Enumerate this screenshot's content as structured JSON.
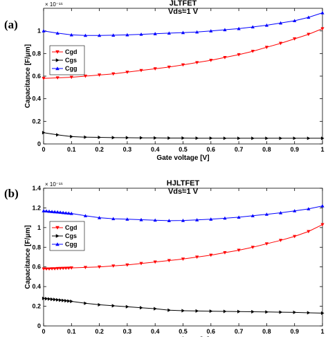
{
  "figure": {
    "panel_labels": [
      "(a)",
      "(b)"
    ]
  },
  "chart_data": [
    {
      "type": "line",
      "title": "JLTFET",
      "subtitle": "Vds=1 V",
      "xlabel": "Gate voltage [V]",
      "ylabel": "Capacitance [F/μm]",
      "y_multiplier": "× 10⁻¹⁶",
      "xlim": [
        0,
        1
      ],
      "ylim": [
        0,
        1.2
      ],
      "xticks": [
        "0",
        "0.1",
        "0.2",
        "0.3",
        "0.4",
        "0.5",
        "0.6",
        "0.7",
        "0.8",
        "0.9",
        "1"
      ],
      "yticks": [
        "0",
        "0.2",
        "0.4",
        "0.6",
        "0.8",
        "1"
      ],
      "ytick_values": [
        0,
        0.2,
        0.4,
        0.6,
        0.8,
        1.0
      ],
      "grid": false,
      "legend": "upper-left",
      "series": [
        {
          "name": "Cgd",
          "color": "#ff0000",
          "marker": "triangle-down",
          "x": [
            0,
            0.05,
            0.1,
            0.15,
            0.2,
            0.25,
            0.3,
            0.35,
            0.4,
            0.45,
            0.5,
            0.55,
            0.6,
            0.65,
            0.7,
            0.75,
            0.8,
            0.85,
            0.9,
            0.95,
            1.0
          ],
          "y": [
            0.58,
            0.585,
            0.59,
            0.6,
            0.61,
            0.62,
            0.635,
            0.65,
            0.665,
            0.68,
            0.7,
            0.72,
            0.74,
            0.765,
            0.79,
            0.82,
            0.855,
            0.89,
            0.93,
            0.97,
            1.02
          ]
        },
        {
          "name": "Cgs",
          "color": "#000000",
          "marker": "triangle-right",
          "x": [
            0,
            0.05,
            0.1,
            0.15,
            0.2,
            0.25,
            0.3,
            0.35,
            0.4,
            0.45,
            0.5,
            0.55,
            0.6,
            0.65,
            0.7,
            0.75,
            0.8,
            0.85,
            0.9,
            0.95,
            1.0
          ],
          "y": [
            0.1,
            0.08,
            0.065,
            0.06,
            0.058,
            0.056,
            0.055,
            0.054,
            0.053,
            0.052,
            0.052,
            0.051,
            0.051,
            0.05,
            0.05,
            0.05,
            0.05,
            0.05,
            0.05,
            0.05,
            0.05
          ]
        },
        {
          "name": "Cgg",
          "color": "#0000ff",
          "marker": "triangle-up",
          "x": [
            0,
            0.05,
            0.1,
            0.15,
            0.2,
            0.25,
            0.3,
            0.35,
            0.4,
            0.45,
            0.5,
            0.55,
            0.6,
            0.65,
            0.7,
            0.75,
            0.8,
            0.85,
            0.9,
            0.95,
            1.0
          ],
          "y": [
            1.0,
            0.98,
            0.965,
            0.96,
            0.96,
            0.962,
            0.965,
            0.97,
            0.975,
            0.98,
            0.985,
            0.99,
            1.0,
            1.01,
            1.02,
            1.035,
            1.05,
            1.07,
            1.09,
            1.12,
            1.16
          ]
        }
      ]
    },
    {
      "type": "line",
      "title": "HJLTFET",
      "subtitle": "Vds=1 V",
      "xlabel": "Gate voltage [V]",
      "ylabel": "Capacitance [F/μm]",
      "y_multiplier": "× 10⁻¹⁶",
      "xlim": [
        0,
        1
      ],
      "ylim": [
        0,
        1.4
      ],
      "xticks": [
        "0",
        "0.1",
        "0.2",
        "0.3",
        "0.4",
        "0.5",
        "0.6",
        "0.7",
        "0.8",
        "0.9",
        "1"
      ],
      "yticks": [
        "0",
        "0.2",
        "0.4",
        "0.6",
        "0.8",
        "1",
        "1.2",
        "1.4"
      ],
      "ytick_values": [
        0,
        0.2,
        0.4,
        0.6,
        0.8,
        1.0,
        1.2,
        1.4
      ],
      "grid": false,
      "legend": "upper-left",
      "series": [
        {
          "name": "Cgd",
          "color": "#ff0000",
          "marker": "triangle-down",
          "x": [
            0,
            0.01,
            0.02,
            0.03,
            0.04,
            0.05,
            0.06,
            0.07,
            0.08,
            0.09,
            0.1,
            0.15,
            0.2,
            0.25,
            0.3,
            0.35,
            0.4,
            0.45,
            0.5,
            0.55,
            0.6,
            0.65,
            0.7,
            0.75,
            0.8,
            0.85,
            0.9,
            0.95,
            1.0
          ],
          "y": [
            0.58,
            0.58,
            0.58,
            0.582,
            0.582,
            0.584,
            0.585,
            0.586,
            0.587,
            0.588,
            0.59,
            0.595,
            0.6,
            0.61,
            0.62,
            0.635,
            0.65,
            0.665,
            0.68,
            0.7,
            0.72,
            0.745,
            0.77,
            0.8,
            0.835,
            0.87,
            0.91,
            0.96,
            1.03
          ]
        },
        {
          "name": "Cgs",
          "color": "#000000",
          "marker": "triangle-right",
          "x": [
            0,
            0.01,
            0.02,
            0.03,
            0.04,
            0.05,
            0.06,
            0.07,
            0.08,
            0.09,
            0.1,
            0.15,
            0.2,
            0.25,
            0.3,
            0.35,
            0.4,
            0.45,
            0.5,
            0.55,
            0.6,
            0.65,
            0.7,
            0.75,
            0.8,
            0.85,
            0.9,
            0.95,
            1.0
          ],
          "y": [
            0.28,
            0.277,
            0.274,
            0.271,
            0.268,
            0.265,
            0.262,
            0.259,
            0.256,
            0.253,
            0.25,
            0.23,
            0.215,
            0.205,
            0.195,
            0.185,
            0.175,
            0.16,
            0.155,
            0.152,
            0.15,
            0.148,
            0.146,
            0.144,
            0.142,
            0.14,
            0.138,
            0.134,
            0.13
          ]
        },
        {
          "name": "Cgg",
          "color": "#0000ff",
          "marker": "triangle-up",
          "x": [
            0,
            0.01,
            0.02,
            0.03,
            0.04,
            0.05,
            0.06,
            0.07,
            0.08,
            0.09,
            0.1,
            0.15,
            0.2,
            0.25,
            0.3,
            0.35,
            0.4,
            0.45,
            0.5,
            0.55,
            0.6,
            0.65,
            0.7,
            0.75,
            0.8,
            0.85,
            0.9,
            0.95,
            1.0
          ],
          "y": [
            1.17,
            1.168,
            1.165,
            1.162,
            1.16,
            1.158,
            1.155,
            1.152,
            1.149,
            1.146,
            1.143,
            1.12,
            1.1,
            1.09,
            1.085,
            1.08,
            1.075,
            1.07,
            1.072,
            1.078,
            1.085,
            1.095,
            1.105,
            1.12,
            1.135,
            1.15,
            1.17,
            1.19,
            1.22
          ]
        }
      ]
    }
  ]
}
